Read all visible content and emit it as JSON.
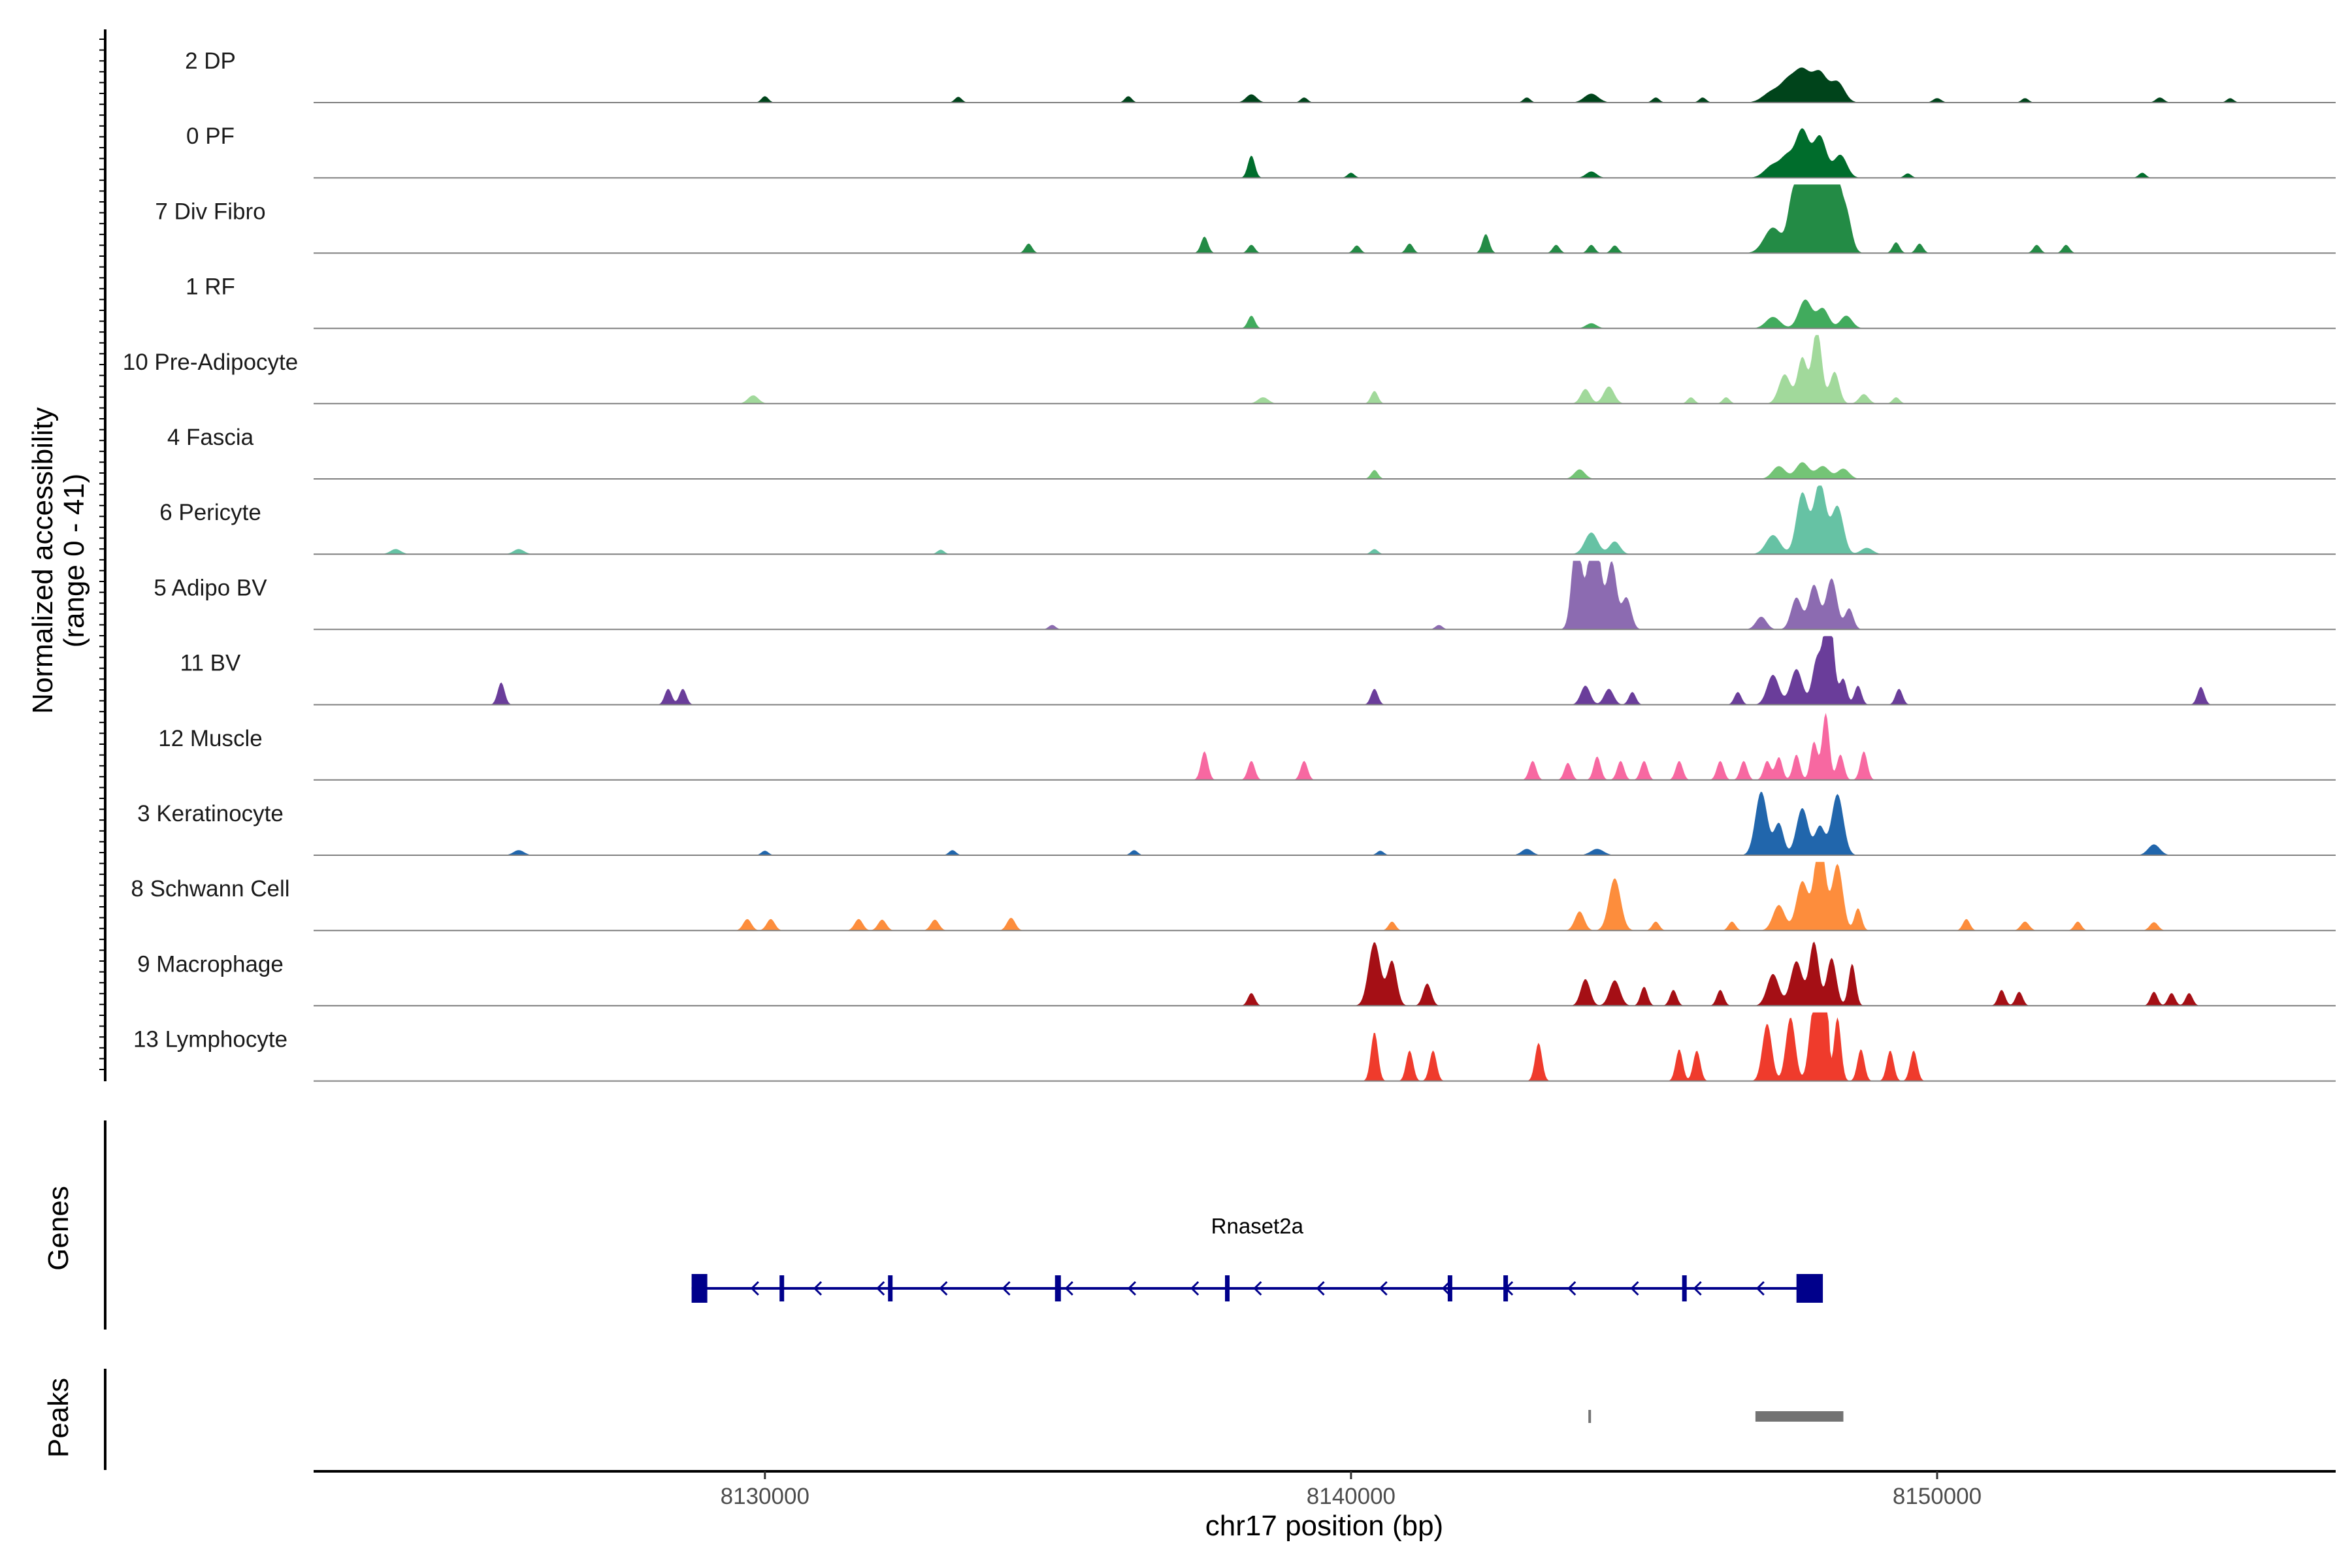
{
  "chart_data": {
    "type": "area",
    "chromosome": "chr17",
    "xlim": [
      8122300,
      8156800
    ],
    "xticks": [
      {
        "value": 8130000,
        "label": "8130000"
      },
      {
        "value": 8140000,
        "label": "8140000"
      },
      {
        "value": 8150000,
        "label": "8150000"
      }
    ],
    "xlabel": "chr17 position (bp)",
    "ylabel_line1": "Normalized accessibility",
    "ylabel_line2": "(range 0 - 41)",
    "yrange": [
      0,
      41
    ],
    "tracks": [
      {
        "name": "2 DP",
        "color": "#00441b",
        "peaks": [
          [
            8130000,
            60,
            1
          ],
          [
            8133300,
            60,
            0.9
          ],
          [
            8136200,
            60,
            1
          ],
          [
            8138300,
            90,
            1.3
          ],
          [
            8139200,
            60,
            0.8
          ],
          [
            8143000,
            60,
            0.8
          ],
          [
            8144100,
            120,
            1.4
          ],
          [
            8145200,
            60,
            0.8
          ],
          [
            8146000,
            60,
            0.8
          ],
          [
            8147200,
            160,
            1.8
          ],
          [
            8147700,
            140,
            5
          ],
          [
            8148000,
            120,
            4.4
          ],
          [
            8148300,
            120,
            3.2
          ],
          [
            8147450,
            120,
            2.5
          ],
          [
            8150000,
            70,
            0.7
          ],
          [
            8151500,
            60,
            0.7
          ],
          [
            8153800,
            70,
            0.8
          ],
          [
            8155000,
            60,
            0.7
          ]
        ]
      },
      {
        "name": "0 PF",
        "color": "#006d2c",
        "peaks": [
          [
            8138300,
            60,
            3.5
          ],
          [
            8140000,
            60,
            0.8
          ],
          [
            8144100,
            90,
            1
          ],
          [
            8147200,
            140,
            2
          ],
          [
            8147700,
            110,
            7.4
          ],
          [
            8148000,
            110,
            6.5
          ],
          [
            8148350,
            110,
            3.6
          ],
          [
            8147450,
            110,
            3
          ],
          [
            8149500,
            60,
            0.7
          ],
          [
            8153500,
            60,
            0.8
          ]
        ]
      },
      {
        "name": "7 Div Fibro",
        "color": "#238b45",
        "peaks": [
          [
            8134500,
            60,
            1.5
          ],
          [
            8137500,
            60,
            2.6
          ],
          [
            8138300,
            60,
            1.3
          ],
          [
            8140100,
            60,
            1.2
          ],
          [
            8141000,
            60,
            1.5
          ],
          [
            8142300,
            60,
            3
          ],
          [
            8143500,
            60,
            1.3
          ],
          [
            8144100,
            60,
            1.3
          ],
          [
            8144500,
            60,
            1.2
          ],
          [
            8147200,
            150,
            4
          ],
          [
            8147550,
            90,
            9
          ],
          [
            8147800,
            110,
            18
          ],
          [
            8148000,
            90,
            9
          ],
          [
            8148200,
            110,
            20
          ],
          [
            8148450,
            90,
            6
          ],
          [
            8149300,
            60,
            1.7
          ],
          [
            8149700,
            60,
            1.5
          ],
          [
            8151700,
            60,
            1.3
          ],
          [
            8152200,
            60,
            1.3
          ]
        ]
      },
      {
        "name": "1 RF",
        "color": "#41ab5d",
        "peaks": [
          [
            8138300,
            60,
            2
          ],
          [
            8144100,
            90,
            0.8
          ],
          [
            8147200,
            120,
            1.8
          ],
          [
            8147750,
            110,
            4.5
          ],
          [
            8148050,
            100,
            3.1
          ],
          [
            8148450,
            100,
            2
          ]
        ]
      },
      {
        "name": "10 Pre-Adipocyte",
        "color": "#a1d99b",
        "peaks": [
          [
            8129800,
            90,
            1.3
          ],
          [
            8138500,
            90,
            1
          ],
          [
            8140400,
            60,
            2
          ],
          [
            8144000,
            80,
            2.3
          ],
          [
            8144400,
            90,
            2.7
          ],
          [
            8145800,
            60,
            1
          ],
          [
            8146400,
            60,
            1
          ],
          [
            8147400,
            100,
            4.6
          ],
          [
            8147700,
            80,
            7.2
          ],
          [
            8147950,
            80,
            11.8
          ],
          [
            8148250,
            80,
            5
          ],
          [
            8148750,
            80,
            1.5
          ],
          [
            8149300,
            60,
            1
          ]
        ]
      },
      {
        "name": "4 Fascia",
        "color": "#74c476",
        "peaks": [
          [
            8140400,
            60,
            1.4
          ],
          [
            8143900,
            90,
            1.5
          ],
          [
            8147300,
            110,
            2
          ],
          [
            8147700,
            110,
            2.6
          ],
          [
            8148050,
            110,
            2
          ],
          [
            8148400,
            100,
            1.6
          ]
        ]
      },
      {
        "name": "6 Pericyte",
        "color": "#66c2a4",
        "peaks": [
          [
            8123700,
            90,
            0.8
          ],
          [
            8125800,
            90,
            0.8
          ],
          [
            8133000,
            60,
            0.7
          ],
          [
            8140400,
            60,
            0.8
          ],
          [
            8144100,
            110,
            3.4
          ],
          [
            8144500,
            90,
            2
          ],
          [
            8147200,
            120,
            3
          ],
          [
            8147700,
            100,
            9.6
          ],
          [
            8148000,
            100,
            11.3
          ],
          [
            8148300,
            100,
            7.5
          ],
          [
            8148800,
            100,
            1
          ]
        ]
      },
      {
        "name": "5 Adipo BV",
        "color": "#8c6bb1",
        "peaks": [
          [
            8143850,
            80,
            15
          ],
          [
            8144150,
            100,
            17.5
          ],
          [
            8144450,
            80,
            10.5
          ],
          [
            8144700,
            80,
            5
          ],
          [
            8147000,
            90,
            2
          ],
          [
            8147600,
            90,
            5
          ],
          [
            8147900,
            90,
            7
          ],
          [
            8148200,
            90,
            8
          ],
          [
            8148500,
            70,
            3.3
          ],
          [
            8141500,
            60,
            0.7
          ],
          [
            8134900,
            60,
            0.7
          ]
        ]
      },
      {
        "name": "11 BV",
        "color": "#6a3d9a",
        "peaks": [
          [
            8125500,
            60,
            3.5
          ],
          [
            8128350,
            60,
            2.5
          ],
          [
            8128600,
            60,
            2.5
          ],
          [
            8140400,
            60,
            2.5
          ],
          [
            8144000,
            80,
            3
          ],
          [
            8144400,
            80,
            2.5
          ],
          [
            8144800,
            60,
            2
          ],
          [
            8146600,
            60,
            2
          ],
          [
            8147200,
            100,
            4.7
          ],
          [
            8147600,
            100,
            5.6
          ],
          [
            8147950,
            80,
            7
          ],
          [
            8148150,
            80,
            16
          ],
          [
            8148400,
            60,
            4
          ],
          [
            8148650,
            60,
            3
          ],
          [
            8149350,
            60,
            2.5
          ],
          [
            8154500,
            60,
            2.8
          ]
        ]
      },
      {
        "name": "12 Muscle",
        "color": "#f768a1",
        "peaks": [
          [
            8137500,
            60,
            4.5
          ],
          [
            8138300,
            60,
            3
          ],
          [
            8139200,
            60,
            3
          ],
          [
            8143100,
            60,
            3
          ],
          [
            8143700,
            60,
            2.7
          ],
          [
            8144200,
            60,
            3.7
          ],
          [
            8144600,
            60,
            3
          ],
          [
            8145000,
            60,
            3
          ],
          [
            8145600,
            60,
            3
          ],
          [
            8146300,
            60,
            3
          ],
          [
            8146700,
            60,
            3
          ],
          [
            8147100,
            60,
            3
          ],
          [
            8147300,
            60,
            3.6
          ],
          [
            8147600,
            60,
            4
          ],
          [
            8147900,
            60,
            6
          ],
          [
            8148100,
            60,
            10.5
          ],
          [
            8148350,
            60,
            4
          ],
          [
            8148750,
            60,
            4.5
          ]
        ]
      },
      {
        "name": "3 Keratinocyte",
        "color": "#2166ac",
        "peaks": [
          [
            8125800,
            90,
            0.8
          ],
          [
            8130000,
            60,
            0.7
          ],
          [
            8133200,
            60,
            0.8
          ],
          [
            8136300,
            60,
            0.8
          ],
          [
            8140500,
            60,
            0.7
          ],
          [
            8143000,
            90,
            1
          ],
          [
            8144200,
            110,
            1
          ],
          [
            8147000,
            100,
            10
          ],
          [
            8147300,
            80,
            5
          ],
          [
            8147700,
            100,
            7.4
          ],
          [
            8148300,
            100,
            9.6
          ],
          [
            8148000,
            80,
            4.5
          ],
          [
            8153700,
            100,
            1.7
          ]
        ]
      },
      {
        "name": "8 Schwann Cell",
        "color": "#fd8d3c",
        "peaks": [
          [
            8129700,
            70,
            1.8
          ],
          [
            8130100,
            70,
            1.8
          ],
          [
            8131600,
            70,
            1.8
          ],
          [
            8132000,
            70,
            1.7
          ],
          [
            8132900,
            70,
            1.7
          ],
          [
            8134200,
            70,
            2
          ],
          [
            8140700,
            60,
            1.4
          ],
          [
            8143900,
            80,
            3
          ],
          [
            8144500,
            100,
            8.2
          ],
          [
            8145200,
            60,
            1.4
          ],
          [
            8146500,
            60,
            1.4
          ],
          [
            8147300,
            100,
            4
          ],
          [
            8147700,
            100,
            7.7
          ],
          [
            8148000,
            90,
            15
          ],
          [
            8148300,
            90,
            10.4
          ],
          [
            8148650,
            60,
            3.5
          ],
          [
            8150500,
            60,
            1.8
          ],
          [
            8151500,
            70,
            1.4
          ],
          [
            8152400,
            60,
            1.4
          ],
          [
            8153700,
            70,
            1.3
          ]
        ]
      },
      {
        "name": "9 Macrophage",
        "color": "#a50f15",
        "peaks": [
          [
            8138300,
            60,
            2
          ],
          [
            8140400,
            100,
            10
          ],
          [
            8140700,
            80,
            7
          ],
          [
            8141300,
            70,
            3.5
          ],
          [
            8144000,
            80,
            4.2
          ],
          [
            8144500,
            90,
            4
          ],
          [
            8145000,
            60,
            3
          ],
          [
            8145500,
            60,
            2.5
          ],
          [
            8146300,
            60,
            2.5
          ],
          [
            8147200,
            100,
            5
          ],
          [
            8147600,
            100,
            7
          ],
          [
            8147900,
            80,
            10
          ],
          [
            8148200,
            80,
            7.5
          ],
          [
            8148550,
            60,
            6.6
          ],
          [
            8151100,
            60,
            2.5
          ],
          [
            8151400,
            60,
            2.2
          ],
          [
            8153700,
            60,
            2.2
          ],
          [
            8154000,
            60,
            2
          ],
          [
            8154300,
            60,
            2
          ]
        ]
      },
      {
        "name": "13 Lymphocyte",
        "color": "#ef3b2c",
        "peaks": [
          [
            8140400,
            60,
            7.7
          ],
          [
            8141000,
            60,
            4.8
          ],
          [
            8141400,
            60,
            4.8
          ],
          [
            8143200,
            60,
            6
          ],
          [
            8145600,
            60,
            5
          ],
          [
            8145900,
            60,
            4.8
          ],
          [
            8147100,
            80,
            9
          ],
          [
            8147500,
            80,
            10
          ],
          [
            8147900,
            80,
            12
          ],
          [
            8148070,
            50,
            32
          ],
          [
            8148300,
            60,
            10
          ],
          [
            8148700,
            60,
            5
          ],
          [
            8149200,
            60,
            4.8
          ],
          [
            8149600,
            60,
            4.8
          ]
        ]
      }
    ],
    "gene": {
      "name": "Rnaset2a",
      "start": 8128750,
      "end": 8148050,
      "strand": "-",
      "color": "#00008b",
      "exons": [
        [
          8128750,
          8129000
        ],
        [
          8130250,
          8130310
        ],
        [
          8132100,
          8132140
        ],
        [
          8134950,
          8135050
        ],
        [
          8137850,
          8137900
        ],
        [
          8141650,
          8141700
        ],
        [
          8142600,
          8142650
        ],
        [
          8145650,
          8145700
        ],
        [
          8147600,
          8148050
        ]
      ]
    },
    "peaks": {
      "color": "#737373",
      "ranges": [
        [
          8144050,
          8144080
        ],
        [
          8146900,
          8148400
        ]
      ]
    },
    "panel_labels": {
      "genes": "Genes",
      "peaks": "Peaks"
    }
  }
}
